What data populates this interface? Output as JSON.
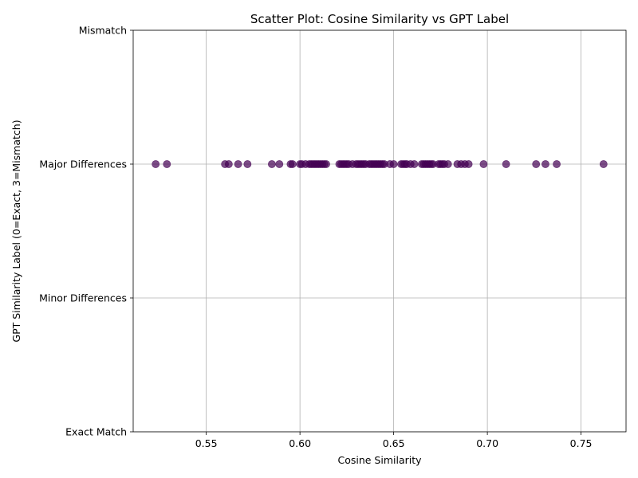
{
  "chart_data": {
    "type": "scatter",
    "title": "Scatter Plot: Cosine Similarity vs GPT Label",
    "xlabel": "Cosine Similarity",
    "ylabel": "GPT Similarity Label (0=Exact, 3=Mismatch)",
    "xlim": [
      0.511,
      0.774
    ],
    "ylim": [
      0,
      3
    ],
    "xticks": [
      0.55,
      0.6,
      0.65,
      0.7,
      0.75
    ],
    "xtick_labels": [
      "0.55",
      "0.60",
      "0.65",
      "0.70",
      "0.75"
    ],
    "yticks": [
      0,
      1,
      2,
      3
    ],
    "ytick_labels": [
      "Exact Match",
      "Minor Differences",
      "Major Differences",
      "Mismatch"
    ],
    "grid": true,
    "point_color": "#440154",
    "point_alpha": 0.7,
    "series": [
      {
        "x": [
          0.523,
          0.529,
          0.56,
          0.562,
          0.567,
          0.572,
          0.585,
          0.589,
          0.595,
          0.596,
          0.6,
          0.601,
          0.603,
          0.605,
          0.606,
          0.607,
          0.608,
          0.609,
          0.61,
          0.611,
          0.612,
          0.613,
          0.614,
          0.621,
          0.622,
          0.623,
          0.624,
          0.625,
          0.626,
          0.628,
          0.63,
          0.631,
          0.632,
          0.633,
          0.634,
          0.635,
          0.637,
          0.638,
          0.639,
          0.64,
          0.641,
          0.642,
          0.643,
          0.644,
          0.645,
          0.648,
          0.65,
          0.654,
          0.655,
          0.656,
          0.657,
          0.659,
          0.661,
          0.665,
          0.666,
          0.667,
          0.668,
          0.669,
          0.67,
          0.671,
          0.674,
          0.675,
          0.676,
          0.677,
          0.679,
          0.684,
          0.686,
          0.688,
          0.69,
          0.698,
          0.71,
          0.726,
          0.731,
          0.737,
          0.762
        ],
        "y": [
          2,
          2,
          2,
          2,
          2,
          2,
          2,
          2,
          2,
          2,
          2,
          2,
          2,
          2,
          2,
          2,
          2,
          2,
          2,
          2,
          2,
          2,
          2,
          2,
          2,
          2,
          2,
          2,
          2,
          2,
          2,
          2,
          2,
          2,
          2,
          2,
          2,
          2,
          2,
          2,
          2,
          2,
          2,
          2,
          2,
          2,
          2,
          2,
          2,
          2,
          2,
          2,
          2,
          2,
          2,
          2,
          2,
          2,
          2,
          2,
          2,
          2,
          2,
          2,
          2,
          2,
          2,
          2,
          2,
          2,
          2,
          2,
          2,
          2,
          2
        ]
      }
    ]
  }
}
